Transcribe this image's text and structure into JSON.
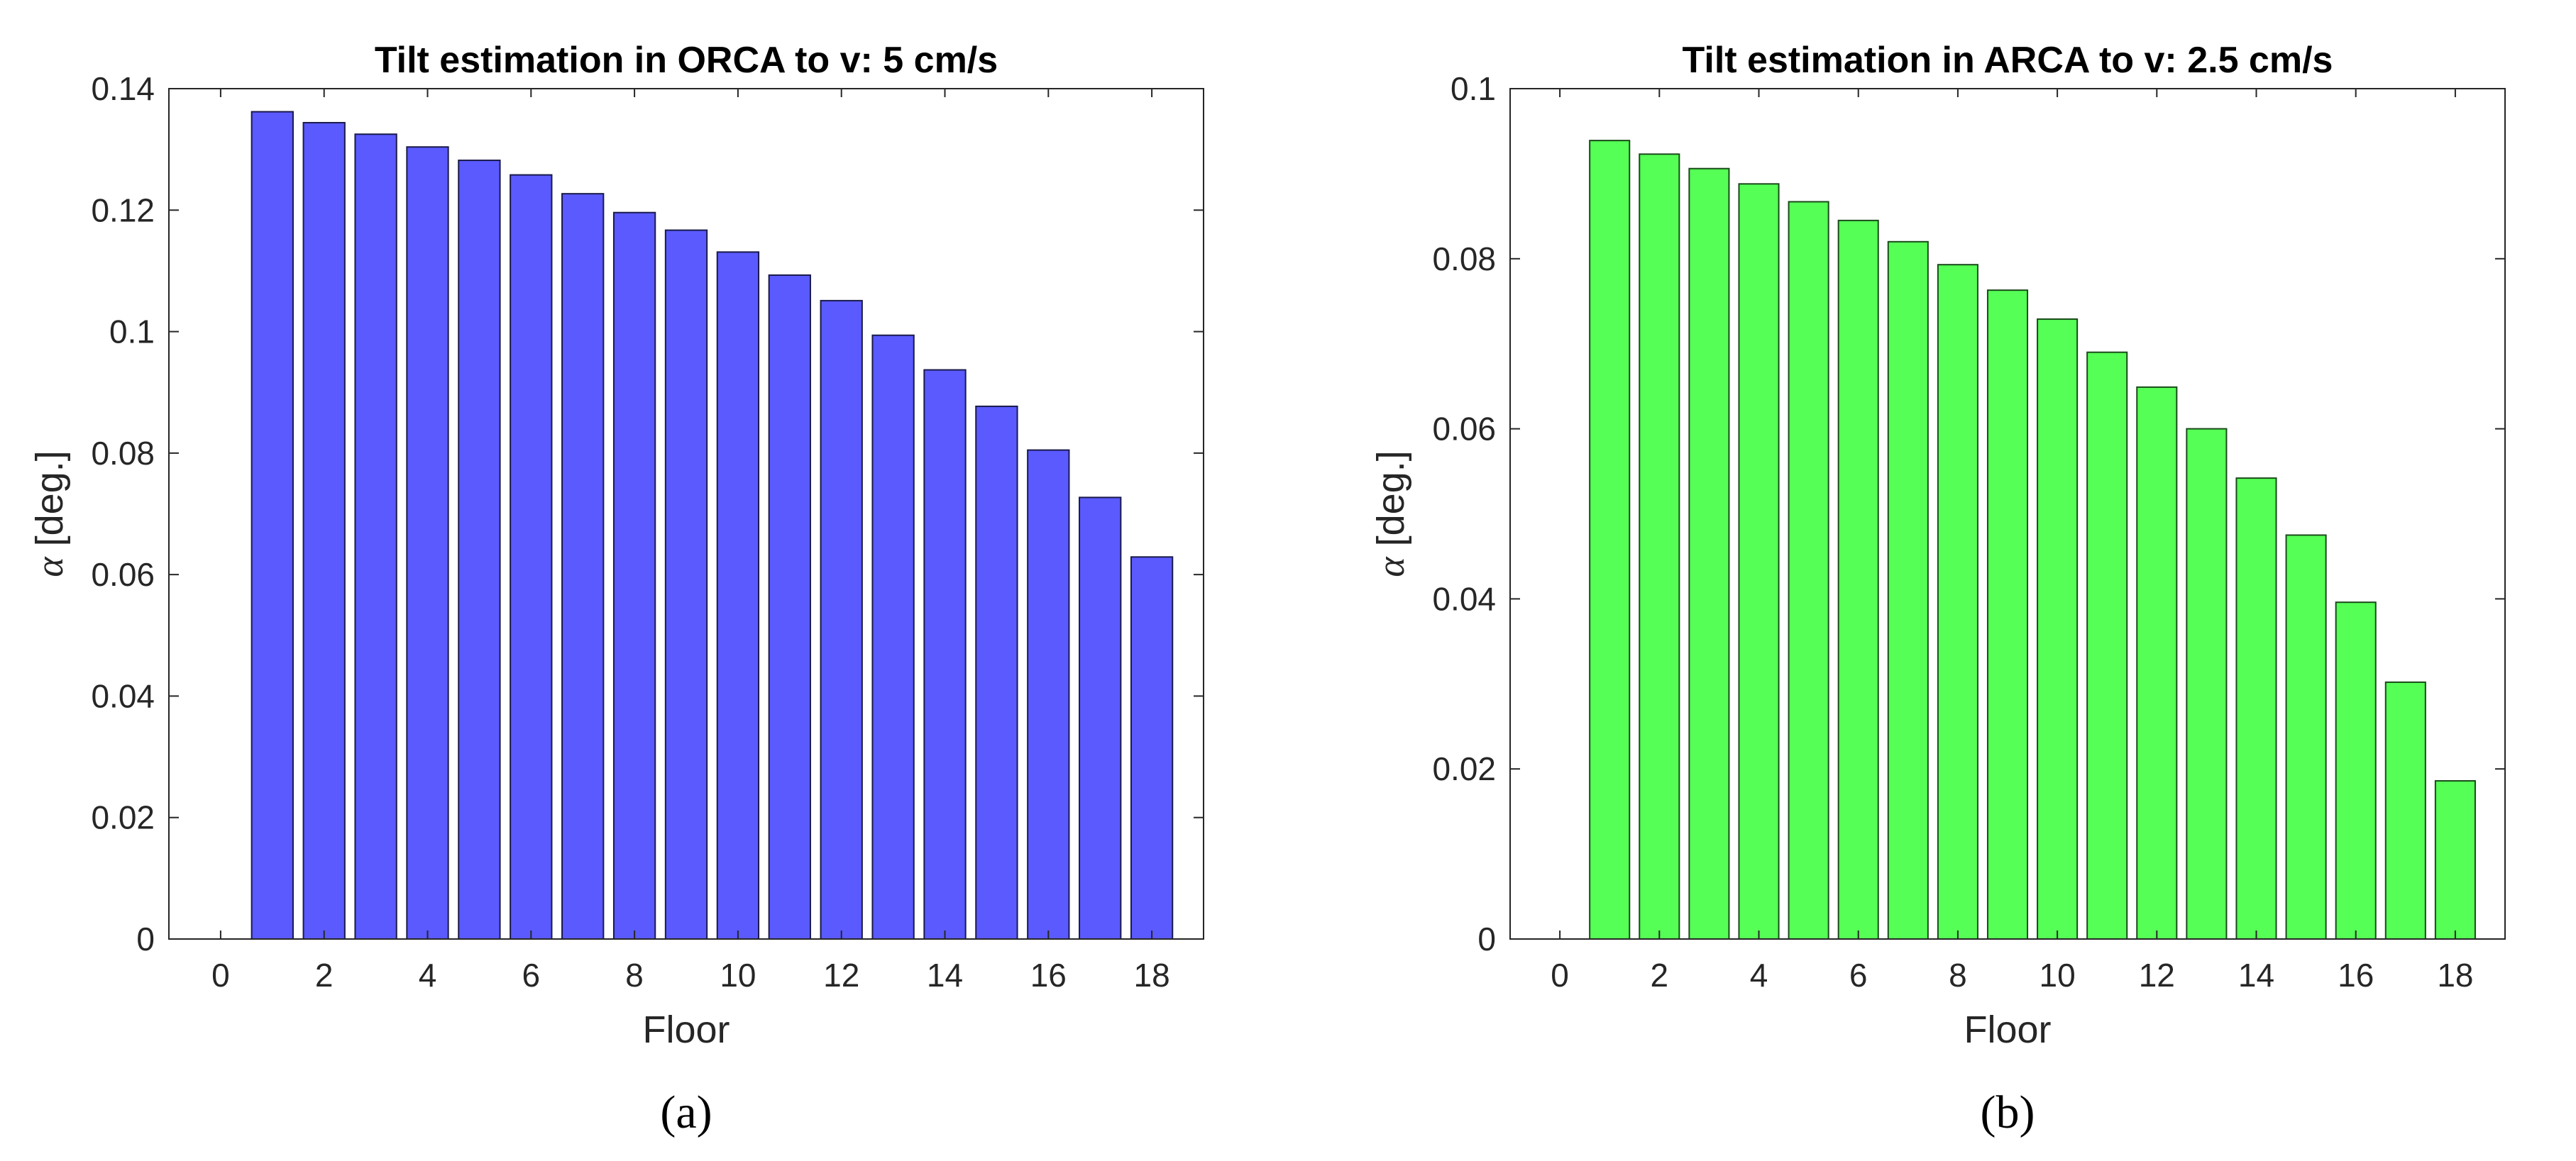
{
  "chart_data": [
    {
      "id": "a",
      "type": "bar",
      "title": "Tilt estimation in ORCA to v: 5 cm/s",
      "xlabel": "Floor",
      "ylabel_symbol": "α",
      "ylabel_text": " [deg.]",
      "panel_label": "(a)",
      "bar_color": "#5a5aff",
      "edge_color": "#1a1a4a",
      "xlim": [
        -1,
        19
      ],
      "ylim": [
        0,
        0.14
      ],
      "xticks": [
        0,
        2,
        4,
        6,
        8,
        10,
        12,
        14,
        16,
        18
      ],
      "xtick_labels": [
        "0",
        "2",
        "4",
        "6",
        "8",
        "10",
        "12",
        "14",
        "16",
        "18"
      ],
      "yticks": [
        0,
        0.02,
        0.04,
        0.06,
        0.08,
        0.1,
        0.12,
        0.14
      ],
      "ytick_labels": [
        "0",
        "0.02",
        "0.04",
        "0.06",
        "0.08",
        "0.1",
        "0.12",
        "0.14"
      ],
      "x": [
        1,
        2,
        3,
        4,
        5,
        6,
        7,
        8,
        9,
        10,
        11,
        12,
        13,
        14,
        15,
        16,
        17,
        18
      ],
      "values": [
        0.1362,
        0.1344,
        0.1325,
        0.1304,
        0.1282,
        0.1258,
        0.1227,
        0.1196,
        0.1167,
        0.1131,
        0.1093,
        0.1051,
        0.0994,
        0.0937,
        0.0877,
        0.0805,
        0.0727,
        0.0629
      ]
    },
    {
      "id": "b",
      "type": "bar",
      "title": "Tilt estimation in ARCA to v: 2.5 cm/s",
      "xlabel": "Floor",
      "ylabel_symbol": "α",
      "ylabel_text": " [deg.]",
      "panel_label": "(b)",
      "bar_color": "#55ff55",
      "edge_color": "#1a4a1a",
      "xlim": [
        -1,
        19
      ],
      "ylim": [
        0,
        0.1
      ],
      "xticks": [
        0,
        2,
        4,
        6,
        8,
        10,
        12,
        14,
        16,
        18
      ],
      "xtick_labels": [
        "0",
        "2",
        "4",
        "6",
        "8",
        "10",
        "12",
        "14",
        "16",
        "18"
      ],
      "yticks": [
        0,
        0.02,
        0.04,
        0.06,
        0.08,
        0.1
      ],
      "ytick_labels": [
        "0",
        "0.02",
        "0.04",
        "0.06",
        "0.08",
        "0.1"
      ],
      "x": [
        1,
        2,
        3,
        4,
        5,
        6,
        7,
        8,
        9,
        10,
        11,
        12,
        13,
        14,
        15,
        16,
        17,
        18
      ],
      "values": [
        0.0939,
        0.0923,
        0.0906,
        0.0888,
        0.0867,
        0.0845,
        0.082,
        0.0793,
        0.0763,
        0.0729,
        0.069,
        0.0649,
        0.06,
        0.0542,
        0.0475,
        0.0396,
        0.0302,
        0.0186
      ]
    }
  ]
}
